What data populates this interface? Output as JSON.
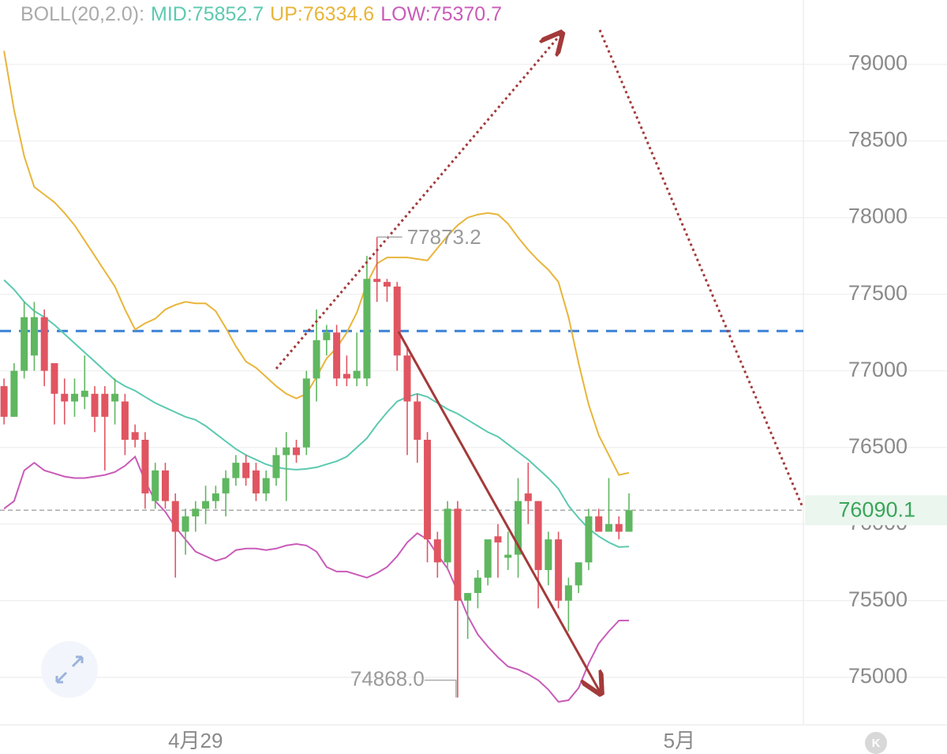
{
  "chart_data": {
    "type": "candlestick",
    "indicator": "BOLL(20,2.0):",
    "indicator_color": "#aaaaaa",
    "up_color": "#5fb760",
    "down_color": "#e05561",
    "xlim": [
      -0.4,
      79.3
    ],
    "xticks": [
      {
        "value": 19,
        "label": "4月29"
      },
      {
        "value": 67,
        "label": "5月"
      }
    ],
    "ylim": [
      74690,
      79420
    ],
    "yticks": [
      75000,
      75500,
      76000,
      76500,
      77000,
      77500,
      78000,
      78500,
      79000
    ],
    "grid": true,
    "open": [
      76900,
      76700,
      77000,
      77100,
      77350,
      77050,
      76850,
      76800,
      76830,
      76850,
      76850,
      76800,
      76800,
      76600,
      76550,
      76150,
      76350,
      76150,
      75950,
      76050,
      76100,
      76150,
      76200,
      76300,
      76400,
      76350,
      76200,
      76300,
      76450,
      76500,
      76500,
      76950,
      77200,
      77250,
      76980,
      76950,
      76950,
      77600,
      77580,
      77550,
      77100,
      76800,
      76550,
      75900,
      75750,
      76100,
      75500,
      75550,
      75650,
      75920,
      75780,
      75800,
      76200,
      76150,
      75700,
      75900,
      75500,
      75600,
      75750,
      76050,
      75950,
      76000,
      75950
    ],
    "high": [
      76950,
      77050,
      77450,
      77450,
      77400,
      77050,
      76950,
      76950,
      77100,
      76900,
      76900,
      76950,
      76850,
      76650,
      76600,
      76400,
      76400,
      76200,
      76100,
      76150,
      76250,
      76250,
      76350,
      76450,
      76450,
      76400,
      76350,
      76500,
      76600,
      76550,
      77000,
      77400,
      77300,
      77300,
      77100,
      77250,
      77750,
      77873.2,
      77600,
      77580,
      77150,
      76850,
      76600,
      75950,
      76150,
      76150,
      75550,
      75700,
      75900,
      76000,
      75950,
      76300,
      76400,
      76150,
      75950,
      75950,
      75650,
      75750,
      76100,
      76100,
      76300,
      76050,
      76200
    ],
    "low": [
      76650,
      76700,
      76950,
      77000,
      76900,
      76650,
      76650,
      76700,
      76750,
      76600,
      76350,
      76650,
      76450,
      76500,
      76100,
      76100,
      76100,
      75650,
      75800,
      75950,
      76000,
      76100,
      76050,
      76250,
      76250,
      76150,
      76150,
      76250,
      76150,
      76400,
      76450,
      76800,
      77100,
      76900,
      76900,
      76900,
      76900,
      77450,
      77450,
      77000,
      76450,
      76400,
      75750,
      75650,
      75700,
      74868.0,
      75250,
      75450,
      75600,
      75650,
      75700,
      75650,
      76000,
      75450,
      75600,
      75450,
      75300,
      75550,
      75700,
      75950,
      75950,
      75900,
      75950
    ],
    "close": [
      76700,
      77000,
      77350,
      77350,
      77000,
      76850,
      76800,
      76850,
      76870,
      76700,
      76700,
      76850,
      76550,
      76550,
      76200,
      76350,
      76150,
      75950,
      76050,
      76100,
      76150,
      76200,
      76300,
      76400,
      76300,
      76200,
      76300,
      76450,
      76500,
      76450,
      76950,
      77200,
      77250,
      76950,
      76950,
      77000,
      77600,
      77580,
      77550,
      77100,
      76800,
      76550,
      75900,
      75750,
      76100,
      75500,
      75550,
      75650,
      75900,
      75880,
      75800,
      76150,
      76150,
      75700,
      75900,
      75500,
      75600,
      75750,
      76050,
      75950,
      76000,
      75950,
      76090.1
    ],
    "series": [
      {
        "name": "MID:75852.7",
        "color": "#5cc9b0",
        "values": [
          77593,
          77530,
          77450,
          77390,
          77350,
          77300,
          77240,
          77180,
          77120,
          77060,
          77000,
          76940,
          76900,
          76870,
          76830,
          76790,
          76760,
          76730,
          76700,
          76680,
          76640,
          76590,
          76540,
          76490,
          76450,
          76420,
          76390,
          76370,
          76360,
          76355,
          76360,
          76370,
          76390,
          76410,
          76440,
          76500,
          76560,
          76650,
          76730,
          76800,
          76830,
          76850,
          76830,
          76790,
          76750,
          76720,
          76680,
          76640,
          76600,
          76570,
          76520,
          76470,
          76420,
          76360,
          76300,
          76230,
          76120,
          76040,
          75970,
          75920,
          75880,
          75850,
          75852.7
        ]
      },
      {
        "name": "UP:76334.6",
        "color": "#e8b53a",
        "values": [
          79088,
          78700,
          78400,
          78200,
          78150,
          78100,
          78030,
          77950,
          77850,
          77750,
          77650,
          77550,
          77400,
          77270,
          77310,
          77340,
          77400,
          77430,
          77450,
          77440,
          77440,
          77390,
          77280,
          77160,
          77060,
          77020,
          76960,
          76900,
          76850,
          76820,
          76850,
          76960,
          77080,
          77150,
          77250,
          77380,
          77570,
          77700,
          77740,
          77740,
          77740,
          77730,
          77720,
          77800,
          77880,
          77950,
          78000,
          78020,
          78030,
          78020,
          77960,
          77870,
          77790,
          77720,
          77660,
          77580,
          77350,
          77050,
          76780,
          76580,
          76450,
          76320,
          76334.6
        ]
      },
      {
        "name": "LOW:75370.7",
        "color": "#c95bb8",
        "values": [
          76100,
          76150,
          76350,
          76400,
          76350,
          76330,
          76310,
          76300,
          76300,
          76310,
          76320,
          76340,
          76380,
          76440,
          76280,
          76150,
          76080,
          75980,
          75900,
          75820,
          75790,
          75760,
          75780,
          75830,
          75840,
          75840,
          75830,
          75840,
          75860,
          75870,
          75860,
          75820,
          75720,
          75690,
          75690,
          75670,
          75650,
          75680,
          75720,
          75790,
          75880,
          75940,
          75900,
          75800,
          75710,
          75560,
          75400,
          75280,
          75200,
          75130,
          75070,
          75050,
          75020,
          74980,
          74920,
          74840,
          74850,
          74930,
          75090,
          75220,
          75300,
          75370,
          75370.7
        ]
      }
    ],
    "annotations": [
      {
        "label": "77873.2",
        "value": 77873.2
      },
      {
        "label": "74868.0",
        "value": 74868.0
      }
    ],
    "reference_line": {
      "value": 77260,
      "color": "#3b82d6"
    },
    "last_price": {
      "value": 76090.1,
      "label": "76090.1",
      "color": "#3aa55a"
    }
  }
}
